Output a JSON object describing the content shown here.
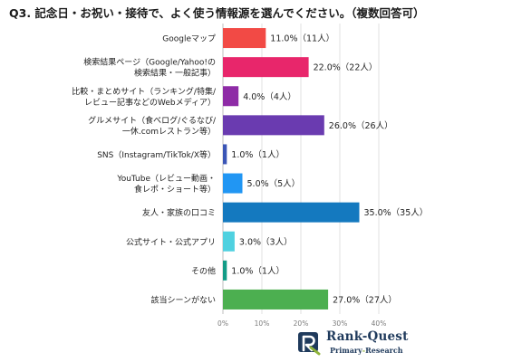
{
  "chart_data": {
    "type": "bar",
    "orientation": "horizontal",
    "title": "Q3. 記念日・お祝い・接待で、よく使う情報源を選んでください。（複数回答可）",
    "categories": [
      [
        "Googleマップ"
      ],
      [
        "検索結果ページ（Google/Yahoo!の",
        "検索結果・一般記事）"
      ],
      [
        "比較・まとめサイト（ランキング/特集/",
        "レビュー記事などのWebメディア）"
      ],
      [
        "グルメサイト（食べログ/ぐるなび/",
        "一休.comレストラン等）"
      ],
      [
        "SNS（Instagram/TikTok/X等）"
      ],
      [
        "YouTube（レビュー動画・",
        "食レポ・ショート等）"
      ],
      [
        "友人・家族の口コミ"
      ],
      [
        "公式サイト・公式アプリ"
      ],
      [
        "その他"
      ],
      [
        "該当シーンがない"
      ]
    ],
    "values": [
      11.0,
      22.0,
      4.0,
      26.0,
      1.0,
      5.0,
      35.0,
      3.0,
      1.0,
      27.0
    ],
    "value_labels": [
      "11.0%（11人）",
      "22.0%（22人）",
      "4.0%（4人）",
      "26.0%（26人）",
      "1.0%（1人）",
      "5.0%（5人）",
      "35.0%（35人）",
      "3.0%（3人）",
      "1.0%（1人）",
      "27.0%（27人）"
    ],
    "colors": [
      "#f24a45",
      "#e8266b",
      "#8e2ba6",
      "#6a3bb0",
      "#3a55b6",
      "#2196f3",
      "#1479bf",
      "#4fd1e0",
      "#129c87",
      "#4caf50"
    ],
    "xlim": [
      0,
      40
    ],
    "xticks": [
      "0%",
      "10%",
      "20%",
      "30%",
      "40%"
    ],
    "xlabel": "",
    "ylabel": "",
    "grid": true
  },
  "logo": {
    "name": "Rank-Quest",
    "subtitle_left": "Primary",
    "subtitle_hyphen": "-",
    "subtitle_right": "Research"
  }
}
